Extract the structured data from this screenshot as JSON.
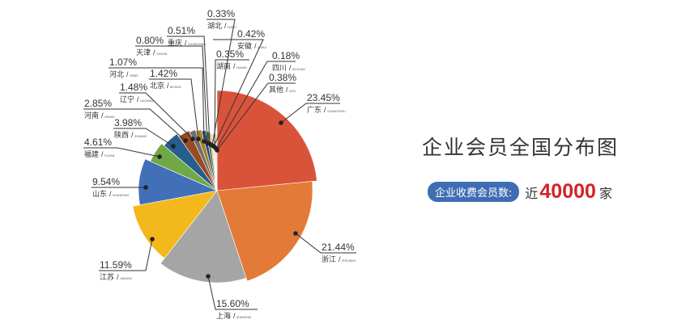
{
  "chart_data": {
    "type": "pie",
    "title": "企业会员全国分布图",
    "slices": [
      {
        "name": "广东",
        "pinyin": "GUANGZHOU",
        "value": 23.45,
        "label": "23.45%",
        "color": "#d9533a"
      },
      {
        "name": "浙江",
        "pinyin": "ZHEJIANG",
        "value": 21.44,
        "label": "21.44%",
        "color": "#e47a37"
      },
      {
        "name": "上海",
        "pinyin": "SHANGHAI",
        "value": 15.6,
        "label": "15.60%",
        "color": "#a5a5a5"
      },
      {
        "name": "江苏",
        "pinyin": "JIANGSU",
        "value": 11.59,
        "label": "11.59%",
        "color": "#f3b91c"
      },
      {
        "name": "山东",
        "pinyin": "SHANDONG",
        "value": 9.54,
        "label": "9.54%",
        "color": "#4270b8"
      },
      {
        "name": "福建",
        "pinyin": "FUJIAN",
        "value": 4.61,
        "label": "4.61%",
        "color": "#70a846"
      },
      {
        "name": "陕西",
        "pinyin": "SHAANXI",
        "value": 3.98,
        "label": "3.98%",
        "color": "#255e8f"
      },
      {
        "name": "河南",
        "pinyin": "HENAN",
        "value": 2.85,
        "label": "2.85%",
        "color": "#9c4a25"
      },
      {
        "name": "辽宁",
        "pinyin": "LIAONING",
        "value": 1.48,
        "label": "1.48%",
        "color": "#6e6e6e"
      },
      {
        "name": "北京",
        "pinyin": "BEIJING",
        "value": 1.42,
        "label": "1.42%",
        "color": "#a58427"
      },
      {
        "name": "河北",
        "pinyin": "HEBEI",
        "value": 1.07,
        "label": "1.07%",
        "color": "#2a4a8a"
      },
      {
        "name": "天津",
        "pinyin": "TIANJIN",
        "value": 0.8,
        "label": "0.80%",
        "color": "#3d7a30"
      },
      {
        "name": "重庆",
        "pinyin": "CHONGQING",
        "value": 0.51,
        "label": "0.51%",
        "color": "#e8a07a"
      },
      {
        "name": "湖北",
        "pinyin": "HUBEI",
        "value": 0.33,
        "label": "0.33%",
        "color": "#c9c9c9"
      },
      {
        "name": "安徽",
        "pinyin": "ANHUI",
        "value": 0.42,
        "label": "0.42%",
        "color": "#f7d27a"
      },
      {
        "name": "湖南",
        "pinyin": "HUNAN",
        "value": 0.35,
        "label": "0.35%",
        "color": "#8eaadb"
      },
      {
        "name": "四川",
        "pinyin": "SICHUAN",
        "value": 0.18,
        "label": "0.18%",
        "color": "#a9d08e"
      },
      {
        "name": "其他",
        "pinyin": "QITA",
        "value": 0.38,
        "label": "0.38%",
        "color": "#f4b183"
      }
    ]
  },
  "side": {
    "title": "企业会员全国分布图",
    "badge": "企业收费会员数:",
    "prefix": "近",
    "count": "40000",
    "unit": "家",
    "count_color": "#d2232a",
    "badge_color": "#3f6db4"
  }
}
